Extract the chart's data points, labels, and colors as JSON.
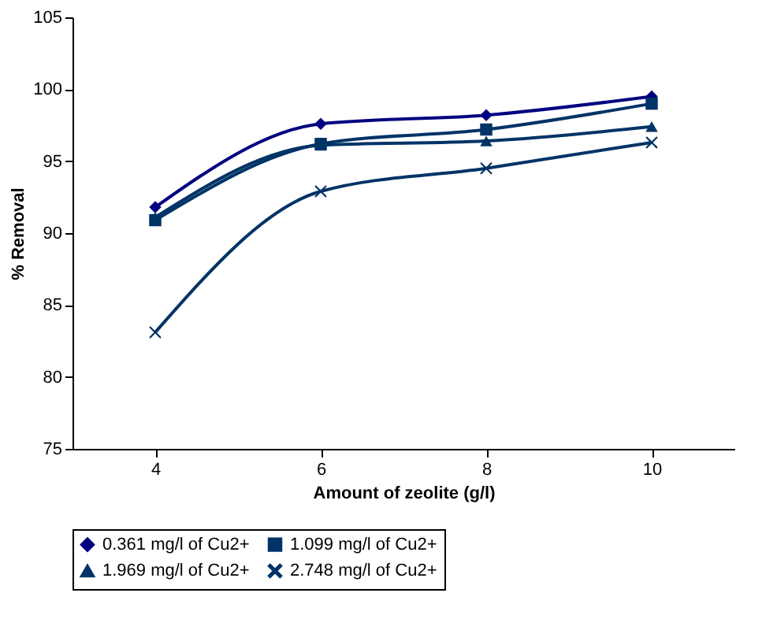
{
  "chart_data": {
    "type": "line",
    "xlabel": "Amount of zeolite (g/l)",
    "ylabel": "% Removal",
    "categories": [
      "4",
      "6",
      "8",
      "10"
    ],
    "ylim": [
      75,
      105
    ],
    "yticks": [
      75,
      80,
      85,
      90,
      95,
      100,
      105
    ],
    "grid": false,
    "legend": "bottom",
    "line_style": "solid",
    "series": [
      {
        "name": "0.361 mg/l of Cu2+",
        "color": "#000080",
        "marker": "diamond",
        "values": [
          91.8,
          97.6,
          98.2,
          99.5
        ]
      },
      {
        "name": "1.099 mg/l of Cu2+",
        "color": "#003366",
        "marker": "square",
        "values": [
          90.9,
          96.2,
          97.2,
          99.0
        ]
      },
      {
        "name": "1.969 mg/l of Cu2+",
        "color": "#003366",
        "marker": "triangle",
        "values": [
          91.1,
          96.1,
          96.4,
          97.4
        ]
      },
      {
        "name": "2.748 mg/l of Cu2+",
        "color": "#003366",
        "marker": "cross",
        "values": [
          83.1,
          92.9,
          94.5,
          96.3
        ]
      }
    ]
  }
}
